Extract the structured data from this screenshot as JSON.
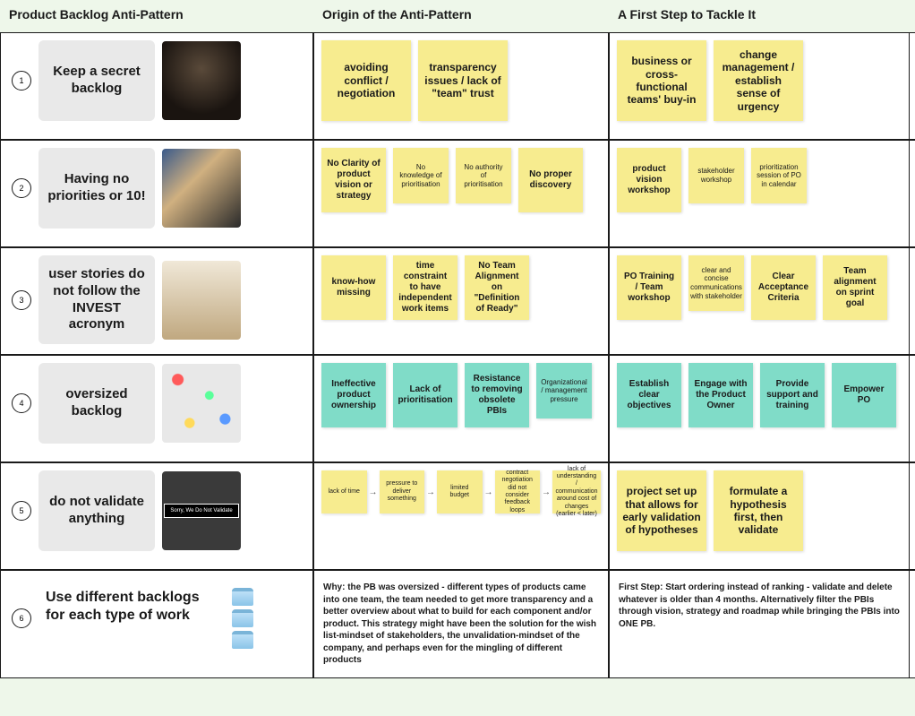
{
  "colors": {
    "page_bg": "#eef7ea",
    "cell_bg": "#ffffff",
    "border": "#1a1a1a",
    "title_card_bg": "#e9e9e9",
    "note_yellow": "#f7ec8f",
    "note_teal": "#80dcc8",
    "text": "#1a1a1a"
  },
  "headers": {
    "col1": "Product Backlog Anti-Pattern",
    "col2": "Origin of the Anti-Pattern",
    "col3": "A First Step to Tackle It"
  },
  "rows": [
    {
      "num": "1",
      "title": "Keep a secret backlog",
      "title_style": "card",
      "thumb": "dark",
      "origin": [
        {
          "text": "avoiding conflict / negotiation",
          "size": "lg",
          "color": "yellow"
        },
        {
          "text": "transparency issues / lack of \"team\" trust",
          "size": "lg",
          "color": "yellow"
        }
      ],
      "tackle": [
        {
          "text": "business or cross-functional teams' buy-in",
          "size": "lg",
          "color": "yellow"
        },
        {
          "text": "change management / establish sense of urgency",
          "size": "lg",
          "color": "yellow"
        }
      ]
    },
    {
      "num": "2",
      "title": "Having no priorities or 10!",
      "title_style": "card",
      "thumb": "surreal",
      "origin": [
        {
          "text": "No Clarity of product vision or strategy",
          "size": "md",
          "color": "yellow"
        },
        {
          "text": "No knowledge of prioritisation",
          "size": "sm",
          "color": "yellow"
        },
        {
          "text": "No authority of prioritisation",
          "size": "sm",
          "color": "yellow"
        },
        {
          "text": "No proper discovery",
          "size": "md",
          "color": "yellow"
        }
      ],
      "tackle": [
        {
          "text": "product vision workshop",
          "size": "md",
          "color": "yellow"
        },
        {
          "text": "stakeholder workshop",
          "size": "sm",
          "color": "yellow"
        },
        {
          "text": "prioritization session of PO in calendar",
          "size": "sm",
          "color": "yellow"
        }
      ]
    },
    {
      "num": "3",
      "title": "user stories do not follow the INVEST acronym",
      "title_style": "card",
      "thumb": "board",
      "origin": [
        {
          "text": "know-how missing",
          "size": "md",
          "color": "yellow"
        },
        {
          "text": "time constraint to have independent work items",
          "size": "md",
          "color": "yellow"
        },
        {
          "text": "No Team Alignment on \"Definition of Ready\"",
          "size": "md",
          "color": "yellow"
        }
      ],
      "tackle": [
        {
          "text": "PO Training / Team workshop",
          "size": "md",
          "color": "yellow"
        },
        {
          "text": "clear and concise communications with stakeholder",
          "size": "sm",
          "color": "yellow"
        },
        {
          "text": "Clear Acceptance Criteria",
          "size": "md",
          "color": "yellow"
        },
        {
          "text": "Team alignment on sprint goal",
          "size": "md",
          "color": "yellow"
        }
      ]
    },
    {
      "num": "4",
      "title": "oversized backlog",
      "title_style": "card",
      "thumb": "confetti",
      "origin": [
        {
          "text": "Ineffective product ownership",
          "size": "md",
          "color": "teal"
        },
        {
          "text": "Lack of prioritisation",
          "size": "md",
          "color": "teal"
        },
        {
          "text": "Resistance to removing obsolete PBIs",
          "size": "md",
          "color": "teal"
        },
        {
          "text": "Organizational / management pressure",
          "size": "sm",
          "color": "teal"
        }
      ],
      "tackle": [
        {
          "text": "Establish clear objectives",
          "size": "md",
          "color": "teal"
        },
        {
          "text": "Engage with the Product Owner",
          "size": "md",
          "color": "teal"
        },
        {
          "text": "Provide support and training",
          "size": "md",
          "color": "teal"
        },
        {
          "text": "Empower PO",
          "size": "md",
          "color": "teal"
        }
      ]
    },
    {
      "num": "5",
      "title": "do not validate anything",
      "title_style": "card",
      "thumb": "sign",
      "origin_flow": [
        "lack of time",
        "pressure to deliver something",
        "limited budget",
        "contract negotiation did not consider feedback loops",
        "lack of understanding / communication around cost of changes (earlier < later)"
      ],
      "tackle": [
        {
          "text": "project set up that allows for early validation of hypotheses",
          "size": "lg",
          "color": "yellow"
        },
        {
          "text": "formulate a hypothesis first, then validate",
          "size": "lg",
          "color": "yellow"
        }
      ]
    },
    {
      "num": "6",
      "title": "Use different backlogs for each type of work",
      "title_style": "plain",
      "thumb": "dbstack",
      "origin_text": "Why: the PB was oversized - different types of products came into one team, the team needed to get more transparency and a better overview about what to build for each component and/or product. This strategy might have been the solution for the wish list-mindset of stakeholders, the unvalidation-mindset of the company, and perhaps even for the mingling of different products",
      "tackle_text": "First Step: Start ordering instead of ranking - validate and delete whatever is older than 4 months. Alternatively filter the PBIs through vision, strategy and roadmap while bringing the PBIs into ONE PB."
    }
  ]
}
